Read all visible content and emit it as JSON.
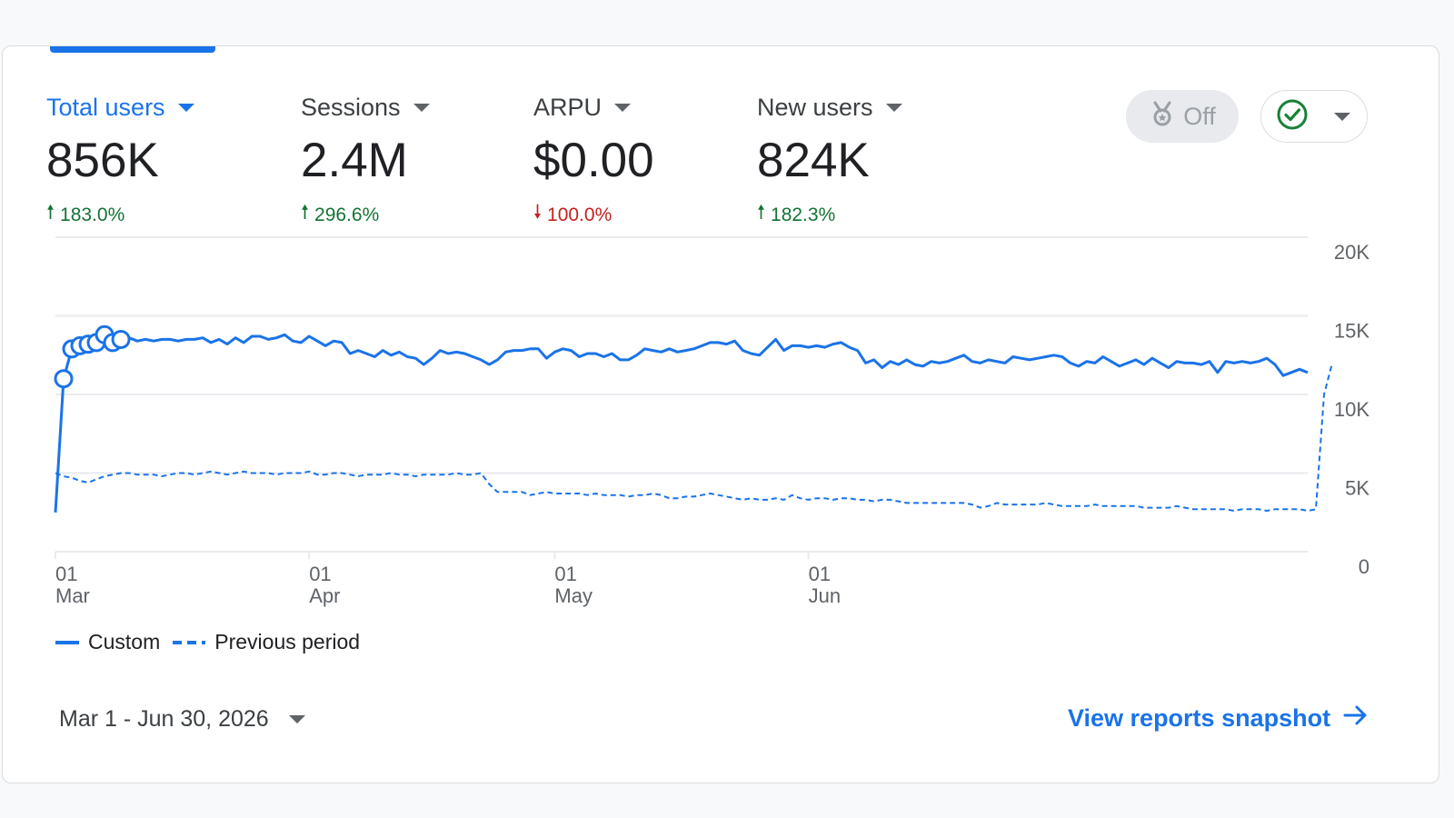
{
  "colors": {
    "accent": "#1a73e8",
    "positive": "#137333",
    "negative": "#c5221f",
    "grid": "#e8eaed",
    "check": "#188038"
  },
  "metrics": [
    {
      "label": "Total users",
      "value": "856K",
      "change": "183.0%",
      "direction": "up",
      "active": true
    },
    {
      "label": "Sessions",
      "value": "2.4M",
      "change": "296.6%",
      "direction": "up",
      "active": false
    },
    {
      "label": "ARPU",
      "value": "$0.00",
      "change": "100.0%",
      "direction": "down",
      "active": false
    },
    {
      "label": "New users",
      "value": "824K",
      "change": "182.3%",
      "direction": "up",
      "active": false
    }
  ],
  "controls": {
    "toggle_label": "Off",
    "toggle_icon": "medal-icon",
    "status_icon": "check-circle-icon"
  },
  "chart_data": {
    "type": "line",
    "ylim": [
      0,
      20000
    ],
    "y_ticks": [
      "20K",
      "15K",
      "10K",
      "5K",
      "0"
    ],
    "x_ticks": [
      {
        "day": "01",
        "month": "Mar"
      },
      {
        "day": "01",
        "month": "Apr"
      },
      {
        "day": "01",
        "month": "May"
      },
      {
        "day": "01",
        "month": "Jun"
      }
    ],
    "legend": [
      {
        "name": "Custom",
        "style": "solid"
      },
      {
        "name": "Previous period",
        "style": "dashed"
      }
    ],
    "series": [
      {
        "name": "Custom",
        "style": "solid",
        "values": [
          2500,
          11000,
          12900,
          13100,
          13200,
          13300,
          13800,
          13300,
          13500,
          13600,
          13400,
          13500,
          13400,
          13500,
          13500,
          13400,
          13500,
          13500,
          13600,
          13300,
          13500,
          13200,
          13600,
          13300,
          13700,
          13700,
          13500,
          13600,
          13800,
          13400,
          13300,
          13700,
          13400,
          13100,
          13400,
          13300,
          12600,
          12800,
          12600,
          12400,
          12800,
          12500,
          12700,
          12400,
          12300,
          11900,
          12300,
          12800,
          12600,
          12700,
          12600,
          12400,
          12200,
          11900,
          12200,
          12700,
          12800,
          12800,
          12900,
          12900,
          12300,
          12700,
          12900,
          12800,
          12400,
          12600,
          12600,
          12400,
          12600,
          12200,
          12200,
          12500,
          12900,
          12800,
          12700,
          12900,
          12700,
          12800,
          12900,
          13100,
          13300,
          13300,
          13200,
          13400,
          12800,
          12600,
          12500,
          13000,
          13500,
          12800,
          13100,
          13100,
          13000,
          13100,
          13000,
          13200,
          13300,
          13000,
          12800,
          12000,
          12200,
          11700,
          12100,
          11900,
          12200,
          11900,
          11800,
          12100,
          12000,
          12100,
          12300,
          12500,
          12100,
          12000,
          12200,
          12100,
          12000,
          12400,
          12300,
          12200,
          12300,
          12400,
          12500,
          12400,
          12000,
          11800,
          12100,
          12000,
          12400,
          12100,
          11800,
          12000,
          12200,
          11900,
          12300,
          12000,
          11700,
          12100,
          12000,
          12000,
          11900,
          12100,
          11400,
          12100,
          12000,
          12100,
          12000,
          12100,
          12300,
          11900,
          11200,
          11400,
          11600,
          11400
        ]
      },
      {
        "name": "Previous period",
        "style": "dashed",
        "values": [
          5000,
          4800,
          4700,
          4500,
          4400,
          4600,
          4800,
          4900,
          5000,
          5000,
          4900,
          4900,
          4900,
          4800,
          4900,
          5000,
          5000,
          4900,
          5000,
          5100,
          5000,
          4900,
          5000,
          5100,
          5000,
          5000,
          5000,
          4900,
          5000,
          5000,
          5000,
          5100,
          4900,
          4900,
          5000,
          5000,
          4900,
          4800,
          4900,
          4900,
          4900,
          5000,
          4900,
          4900,
          4800,
          4900,
          4900,
          4900,
          4900,
          5000,
          4900,
          4900,
          5000,
          4300,
          3800,
          3800,
          3800,
          3800,
          3600,
          3700,
          3800,
          3700,
          3700,
          3700,
          3700,
          3600,
          3700,
          3600,
          3600,
          3600,
          3500,
          3600,
          3600,
          3700,
          3600,
          3400,
          3400,
          3500,
          3500,
          3600,
          3700,
          3600,
          3500,
          3400,
          3300,
          3400,
          3300,
          3300,
          3400,
          3300,
          3600,
          3400,
          3300,
          3400,
          3400,
          3300,
          3400,
          3400,
          3300,
          3300,
          3200,
          3300,
          3300,
          3200,
          3100,
          3100,
          3100,
          3100,
          3100,
          3100,
          3100,
          3100,
          3000,
          2800,
          2900,
          3100,
          3000,
          3000,
          3000,
          3000,
          3000,
          3100,
          3000,
          2900,
          2900,
          2900,
          2900,
          3000,
          2900,
          2900,
          2900,
          2900,
          2900,
          2800,
          2800,
          2800,
          2800,
          2900,
          2800,
          2700,
          2700,
          2700,
          2700,
          2700,
          2600,
          2700,
          2700,
          2700,
          2600,
          2700,
          2700,
          2700,
          2700,
          2600,
          2700,
          10000,
          12000
        ]
      }
    ],
    "highlighted_points": [
      1,
      2,
      3,
      4,
      5,
      6,
      7,
      8
    ]
  },
  "footer": {
    "date_range": "Mar 1 - Jun 30, 2026",
    "view_link": "View reports snapshot"
  }
}
